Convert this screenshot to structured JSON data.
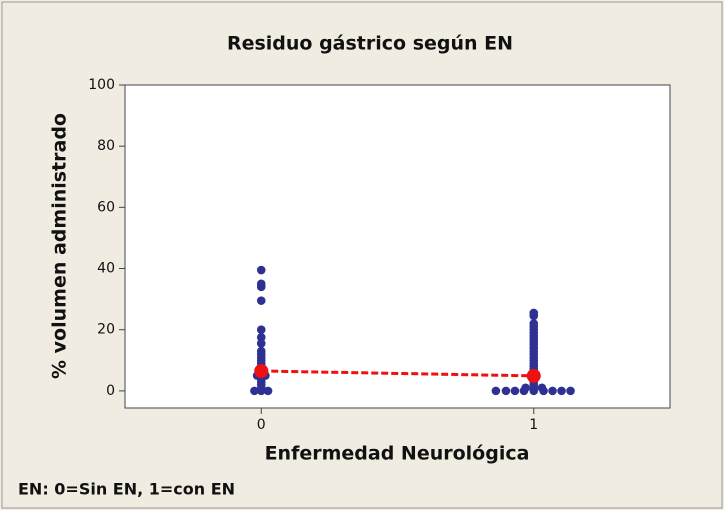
{
  "chart_data": {
    "type": "scatter",
    "title": "Residuo gástrico según  EN",
    "xlabel": "Enfermedad Neurológica",
    "ylabel": "% volumen administrado",
    "note": "EN: 0=Sin EN, 1=con EN",
    "xlim": [
      -0.5,
      1.5
    ],
    "xticks": [
      0,
      1
    ],
    "ylim": [
      -5.6,
      100
    ],
    "yticks": [
      0,
      20,
      40,
      60,
      80,
      100
    ],
    "series": [
      {
        "color": "#2e3192",
        "x": [
          0,
          0,
          0,
          0,
          0,
          0,
          0,
          0,
          0,
          0,
          0,
          0,
          0,
          0,
          0,
          0,
          0,
          0,
          0,
          0,
          -0.025,
          0,
          0.025,
          -0.015,
          0.015,
          1,
          1,
          1,
          1,
          1,
          1,
          1,
          1,
          1,
          1,
          1,
          1,
          1,
          1,
          1,
          1,
          1,
          1,
          1,
          1,
          1,
          1,
          1,
          1,
          -0.139,
          -0.102,
          -0.069,
          -0.036,
          0,
          0.036,
          0.069,
          0.102,
          0.135,
          -0.03,
          0.03
        ],
        "y": [
          39.5,
          35,
          34,
          29.5,
          20,
          17.5,
          15.5,
          13,
          12,
          11,
          10,
          9,
          8,
          7,
          6,
          5,
          4,
          3,
          2,
          1,
          0,
          0,
          0,
          5,
          5,
          25.5,
          24.5,
          22,
          21,
          20,
          19,
          18,
          17,
          16,
          15,
          14,
          13,
          12,
          11,
          10,
          9,
          8,
          7,
          6,
          5,
          4,
          3,
          2,
          1,
          0,
          0,
          0,
          0,
          0,
          0,
          0,
          0,
          0,
          1,
          1
        ],
        "x_offset_group": null
      }
    ],
    "means": {
      "color": "#ee1111",
      "x": [
        0,
        1
      ],
      "values": [
        6.5,
        4.9
      ]
    }
  }
}
